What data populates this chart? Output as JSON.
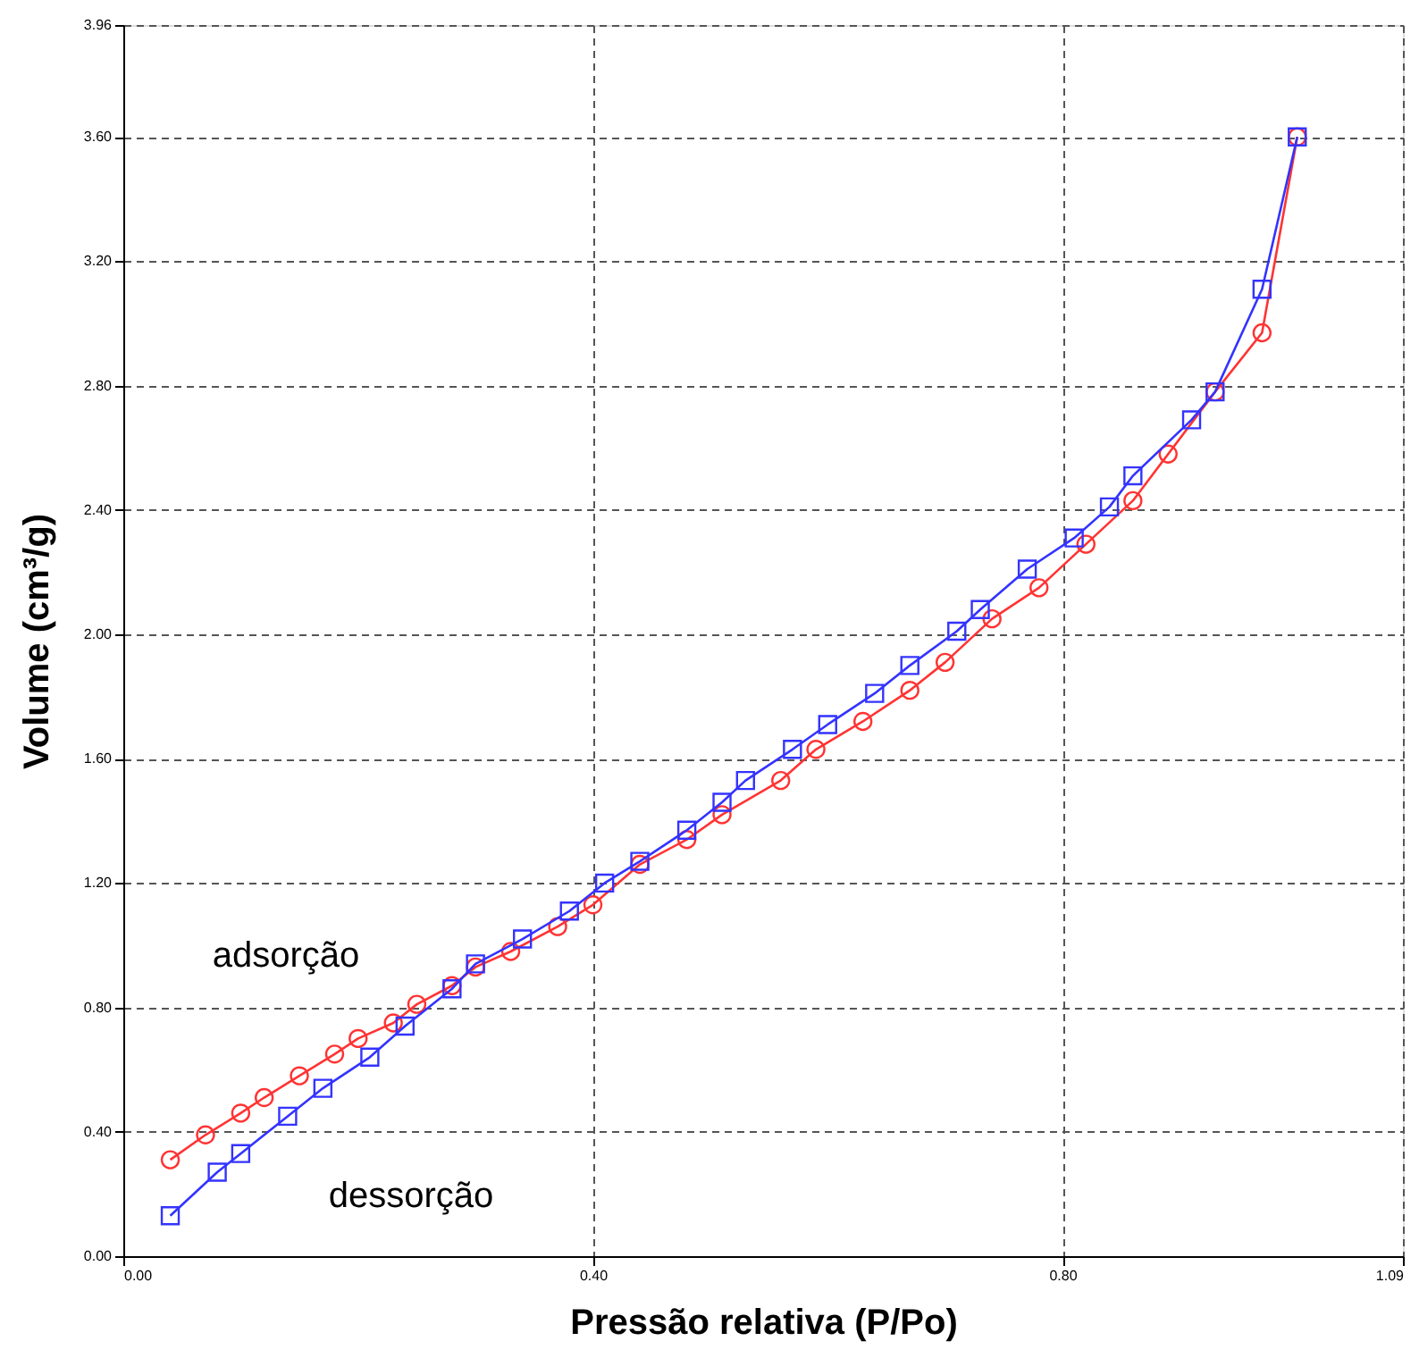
{
  "chart_data": {
    "type": "line",
    "xlabel": "Pressão relativa (P/Po)",
    "ylabel": "Volume (cm³/g)",
    "xlim": [
      0,
      1.09
    ],
    "xticks": [
      {
        "value": 0,
        "label": "0.00"
      },
      {
        "value": 0.4,
        "label": "0.40"
      },
      {
        "value": 0.8,
        "label": "0.80"
      },
      1.09
    ],
    "ylim": [
      0,
      3.96
    ],
    "yticks": [
      {
        "value": 0,
        "label": "0.00"
      },
      {
        "value": 0.4,
        "label": "0.40"
      },
      {
        "value": 0.8,
        "label": "0.80"
      },
      {
        "value": 1.2,
        "label": "1.20"
      },
      {
        "value": 1.6,
        "label": "1.60"
      },
      {
        "value": 2.0,
        "label": "2.00"
      },
      {
        "value": 2.4,
        "label": "2.40"
      },
      {
        "value": 2.8,
        "label": "2.80"
      },
      {
        "value": 3.2,
        "label": "3.20"
      },
      {
        "value": 3.6,
        "label": "3.60"
      },
      3.96
    ],
    "grid": true,
    "legend": false,
    "line_style": "solid",
    "series": [
      {
        "color": "#ff3333",
        "marker": "circle",
        "x": [
          0.04,
          0.07,
          0.1,
          0.12,
          0.15,
          0.18,
          0.2,
          0.23,
          0.25,
          0.28,
          0.3,
          0.33,
          0.37,
          0.4,
          0.44,
          0.48,
          0.51,
          0.56,
          0.59,
          0.63,
          0.67,
          0.7,
          0.74,
          0.78,
          0.82,
          0.86,
          0.89,
          0.93,
          0.97,
          1.0
        ],
        "values": [
          0.31,
          0.39,
          0.46,
          0.51,
          0.58,
          0.65,
          0.7,
          0.75,
          0.81,
          0.87,
          0.93,
          0.98,
          1.06,
          1.13,
          1.26,
          1.34,
          1.42,
          1.53,
          1.63,
          1.72,
          1.82,
          1.91,
          2.05,
          2.15,
          2.29,
          2.43,
          2.58,
          2.78,
          2.97,
          3.6
        ]
      },
      {
        "color": "#3333ff",
        "marker": "square",
        "x": [
          0.04,
          0.08,
          0.1,
          0.14,
          0.17,
          0.21,
          0.24,
          0.28,
          0.3,
          0.34,
          0.38,
          0.41,
          0.44,
          0.48,
          0.51,
          0.53,
          0.57,
          0.6,
          0.64,
          0.67,
          0.71,
          0.73,
          0.77,
          0.81,
          0.84,
          0.86,
          0.91,
          0.93,
          0.97,
          1.0
        ],
        "values": [
          0.13,
          0.27,
          0.33,
          0.45,
          0.54,
          0.64,
          0.74,
          0.86,
          0.94,
          1.02,
          1.11,
          1.2,
          1.27,
          1.37,
          1.46,
          1.53,
          1.63,
          1.71,
          1.81,
          1.9,
          2.01,
          2.08,
          2.21,
          2.31,
          2.41,
          2.51,
          2.69,
          2.78,
          3.11,
          3.6
        ]
      }
    ],
    "annotations": [
      "adsorção",
      "dessorção"
    ]
  }
}
